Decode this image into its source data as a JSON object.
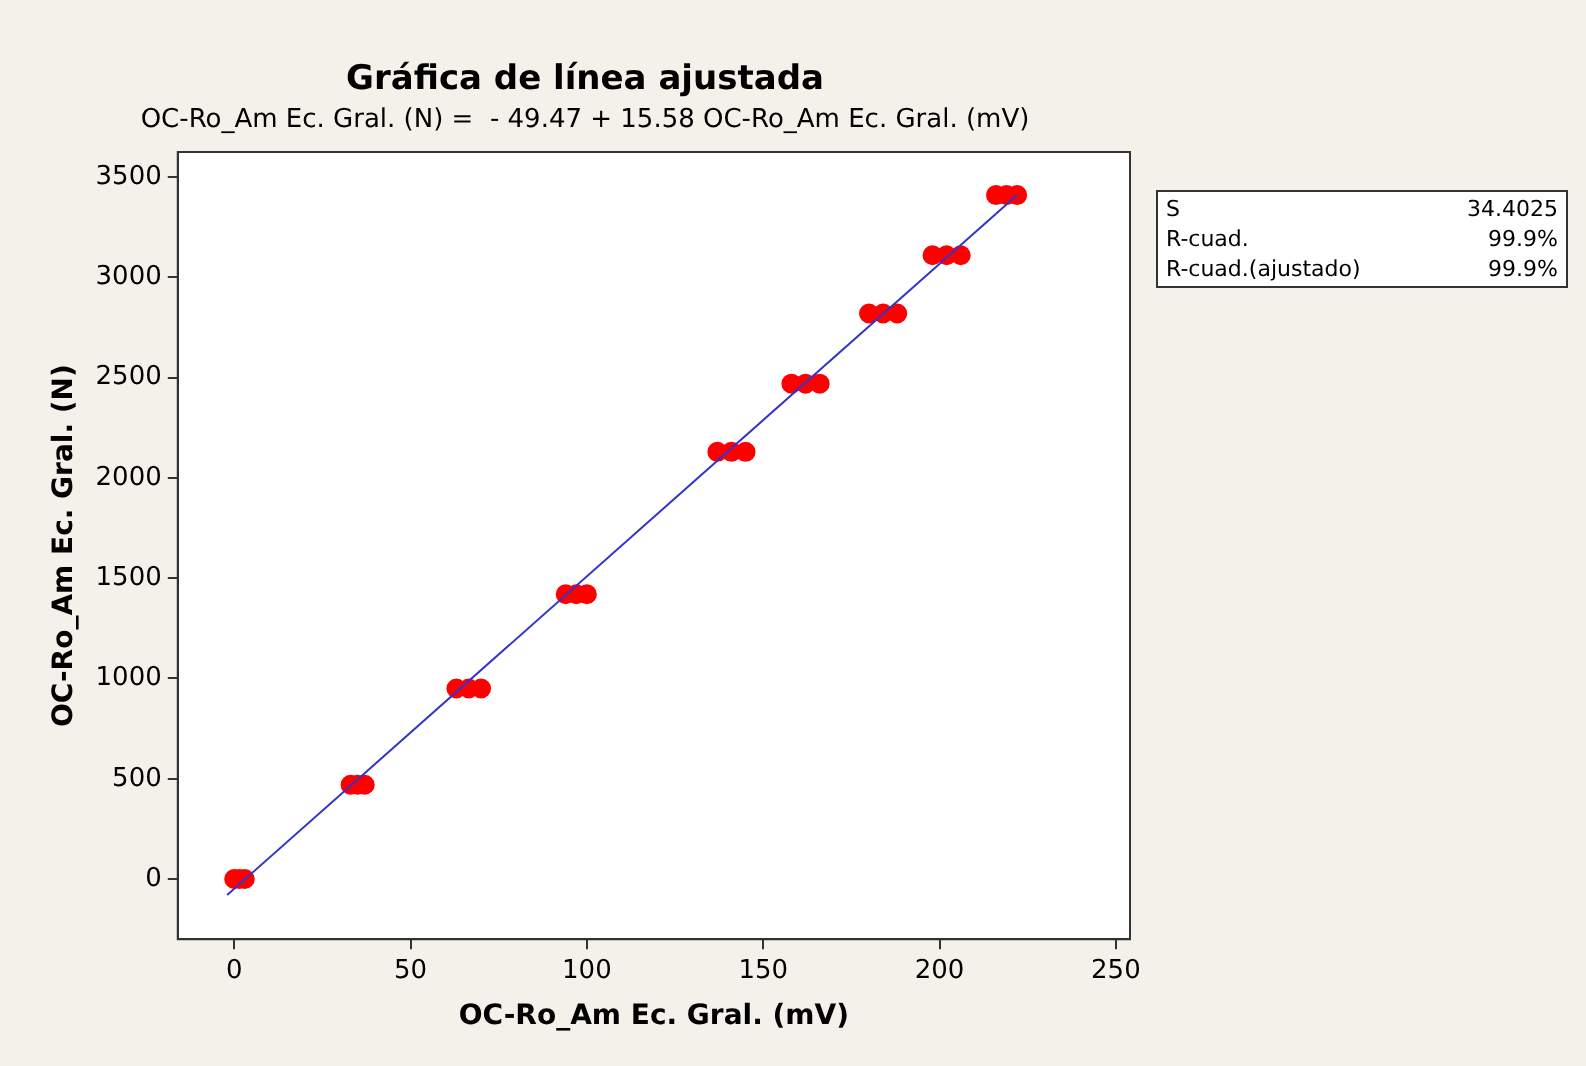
{
  "chart_data": {
    "type": "scatter",
    "title": "Gráfica de línea ajustada",
    "subtitle": "OC-Ro_Am Ec. Gral. (N) =  - 49.47 + 15.58 OC-Ro_Am Ec. Gral. (mV)",
    "xlabel": "OC-Ro_Am Ec. Gral. (mV)",
    "ylabel": "OC-Ro_Am Ec. Gral. (N)",
    "series": [
      {
        "color": "#ff0000",
        "marker": "circle",
        "x": [
          0,
          1.5,
          3,
          33,
          35,
          37,
          63,
          66.5,
          70,
          94,
          97,
          100,
          137,
          141,
          145,
          158,
          162,
          166,
          180,
          184,
          188,
          198,
          202,
          206,
          216,
          219,
          222
        ],
        "values": [
          0,
          0,
          0,
          470,
          470,
          470,
          950,
          950,
          950,
          1420,
          1420,
          1420,
          2130,
          2130,
          2130,
          2470,
          2470,
          2470,
          2820,
          2820,
          2820,
          3110,
          3110,
          3110,
          3410,
          3410,
          3410
        ]
      },
      {
        "type": "line",
        "color": "#3333cc",
        "marker": "none",
        "x": [
          -2,
          222
        ],
        "values": [
          -80,
          3410
        ]
      }
    ],
    "xlim": [
      -16,
      254
    ],
    "xticks": [
      0,
      50,
      100,
      150,
      200,
      250
    ],
    "ylim": [
      -300,
      3625
    ],
    "yticks": [
      0,
      500,
      1000,
      1500,
      2000,
      2500,
      3000,
      3500
    ],
    "grid": false,
    "legend": false,
    "annotations": [
      "S",
      "34.4025",
      "R-cuad.",
      "99.9%",
      "R-cuad.(ajustado)",
      "99.9%"
    ]
  }
}
